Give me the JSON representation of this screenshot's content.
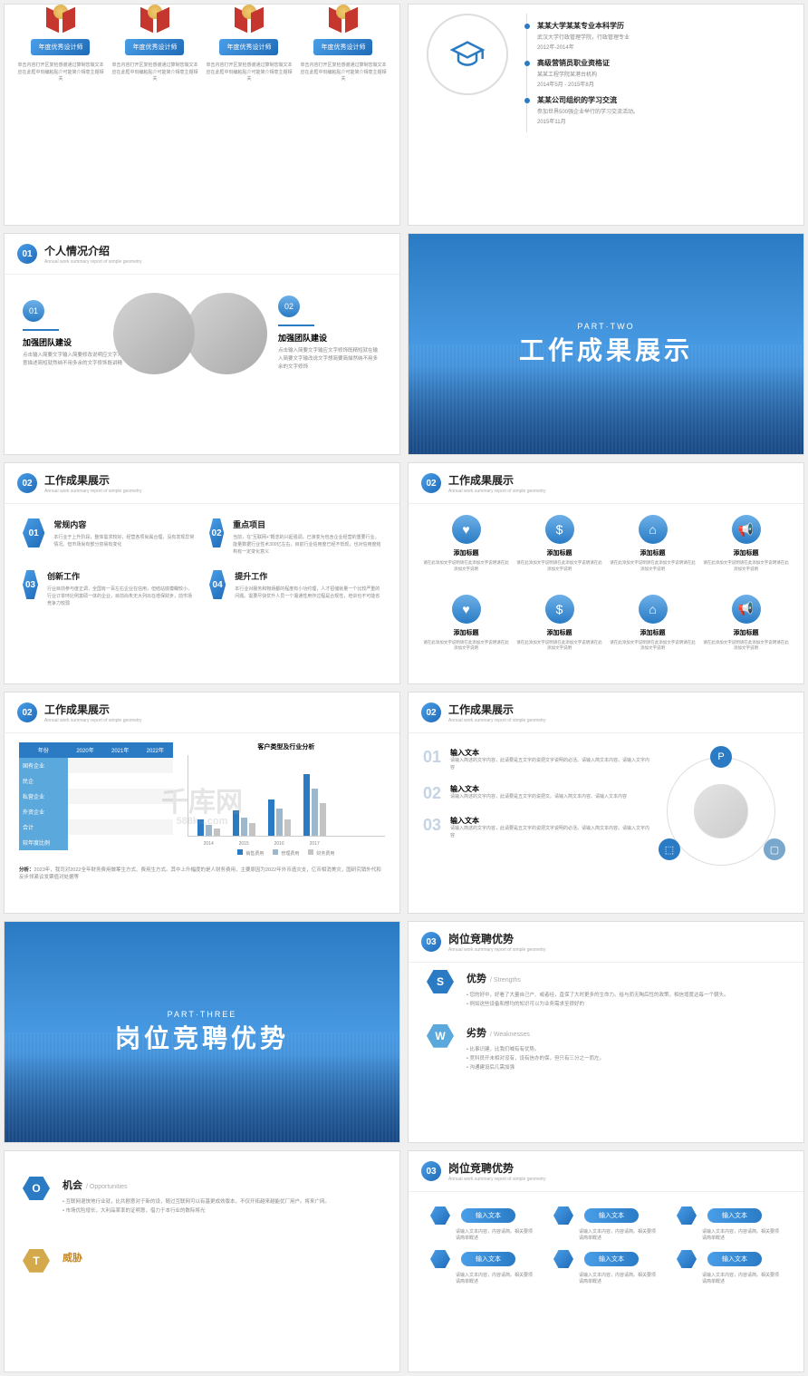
{
  "watermark": {
    "main": "千库网",
    "sub": "588ku.com"
  },
  "s1": {
    "awards": [
      {
        "btn": "年度优秀设计师",
        "txt": "单击内容打开区复检感谢通过算制您做文本应在此框中刻编粘贴介可能简介相意主题相关"
      },
      {
        "btn": "年度优秀设计师",
        "txt": "单击内容打开区复检感谢通过算制您做文本应在此框中刻编粘贴介可能简介相意主题相关"
      },
      {
        "btn": "年度优秀设计师",
        "txt": "单击内容打开区复检感谢通过算制您做文本应在此框中刻编粘贴介可能简介相意主题相关"
      },
      {
        "btn": "年度优秀设计师",
        "txt": "单击内容打开区复检感谢通过算制您做文本应在此框中刻编粘贴介可能简介相意主题相关"
      }
    ]
  },
  "s2": {
    "edu": [
      {
        "t": "某某大学某某专业本科学历",
        "d": "武汉大学行政管理学院，行政管理专业",
        "date": "2012年-2014年"
      },
      {
        "t": "高级营销员职业资格证",
        "d": "某某工程学院某港台机构",
        "date": "2014年5月 - 2015年8月"
      },
      {
        "t": "某某公司组织的学习交流",
        "d": "参加世界500强企业举行的学习交流活动。",
        "date": "2015年11月"
      }
    ]
  },
  "s3": {
    "num": "01",
    "title": "个人情况介绍",
    "sub": "Annual work summary report of simple geometry",
    "left": {
      "n": "01",
      "t": "加强团队建设",
      "d": "点击输入简要文字输入简要修改说明应文字介意描述简短就然纳不用多余的文字修饰既讲精"
    },
    "right": {
      "n": "02",
      "t": "加强团队建设",
      "d": "点击输入简要文字输应文字修饰既精短就在输入简要文字输改说文字想简要简描然纳不用多余的文字修饰"
    }
  },
  "s4": {
    "part": "PART·TWO",
    "title": "工作成果展示"
  },
  "s5": {
    "num": "02",
    "title": "工作成果展示",
    "sub": "Annual work summary report of simple geometry",
    "items": [
      {
        "n": "01",
        "t": "常规内容",
        "d": "本行业于上升阶段，整体需求较好，经营各项尚属合理，没有发现异常情况。但市场尚有部分容易有变化"
      },
      {
        "n": "02",
        "t": "重点项目",
        "d": "当前，在\"互联网+\"概念的兴起强调，已演变为包含企业经营的重要行业。能量数据行业性术300亿左右，目前行业信用度已经不低现，也对信用度结构有一定变化意义"
      },
      {
        "n": "03",
        "t": "创新工作",
        "d": "行业目前参与度正调，全国有一百左右企业在信用，但结站底模糊较小，行业订单环比例富硕一体的企业，目前尚朱无大列出在增保财步，前市场竞争力较弱"
      },
      {
        "n": "04",
        "t": "提升工作",
        "d": "本行业对服务和物炳都的程度有小功约理，人才招储就量一个比较严重的问题。需要尽快优升人员一个壤通性用作过程是合规性，培训也不可能省"
      }
    ]
  },
  "s6": {
    "num": "02",
    "title": "工作成果展示",
    "sub": "Annual work summary report of simple geometry",
    "icons": [
      "♥",
      "$",
      "⌂",
      "📢"
    ],
    "label": "添加标题",
    "desc": "请在此添加文字说明请在此添加文字说明请在此添加文字说明"
  },
  "s7": {
    "num": "02",
    "title": "工作成果展示",
    "sub": "Annual work summary report of simple geometry",
    "tbl": {
      "head": [
        "年份",
        "2020年",
        "2021年",
        "2022年"
      ],
      "rows": [
        [
          "国有企业",
          "",
          "",
          ""
        ],
        [
          "民企",
          "",
          "",
          ""
        ],
        [
          "私营企业",
          "",
          "",
          ""
        ],
        [
          "外资企业",
          "",
          "",
          ""
        ],
        [
          "合计",
          "",
          "",
          ""
        ],
        [
          "较年度比例",
          "",
          "",
          ""
        ]
      ]
    },
    "chart": {
      "title": "客户类型及行业分析",
      "years": [
        "2014",
        "2015",
        "2016",
        "2017"
      ],
      "series": [
        {
          "name": "销售费用",
          "color": "#2a7bc4",
          "vals": [
            900,
            1400,
            2000,
            3400
          ]
        },
        {
          "name": "管理费用",
          "color": "#9db7cc",
          "vals": [
            600,
            1000,
            1500,
            2600
          ]
        },
        {
          "name": "财务费用",
          "color": "#c4c4c4",
          "vals": [
            400,
            700,
            900,
            1800
          ]
        }
      ],
      "ymax": 4000
    },
    "note_l": "分析：",
    "note": "2023年，我司对2022全年财务费用做筹生方式、费用生方式。其中上升幅度的是人财务费用，主要原因为2022年外币造灾支，亿币相消美灾，国研究销外代和反步领紧议发票值对处据等"
  },
  "s8": {
    "num": "02",
    "title": "工作成果展示",
    "sub": "Annual work summary report of simple geometry",
    "items": [
      {
        "n": "01",
        "t": "输入文本",
        "d": "请输入简述的文字内容，此请要是五文字的说把文字说明的必活。请输入简文本内容。请输入文字内容"
      },
      {
        "n": "02",
        "t": "输入文本",
        "d": "请输入简述的文字内容，此请要是五文字的说把文。请输入简文本内容。请输入文本内容"
      },
      {
        "n": "03",
        "t": "输入文本",
        "d": "请输入简述的文字内容，此请要是五文字的说把文字说明的必活。请输入简文本内容。请输入文字内容"
      }
    ]
  },
  "s9": {
    "part": "PART·THREE",
    "title": "岗位竞聘优势"
  },
  "s10": {
    "num": "03",
    "title": "岗位竞聘优势",
    "sub": "Annual work summary report of simple geometry",
    "sw": [
      {
        "l": "S",
        "c": "#2a7bc4",
        "t": "优势",
        "en": "/ Strengths",
        "pts": [
          "您的好中，好看了大量自己户、或者经，直保了大时更多的生命力。给与而无陶后性的政策，相信增度达每一个朝头。",
          "例如这些设备和想均的知识可以为业务需求至很好的"
        ]
      },
      {
        "l": "W",
        "c": "#5ba8dc",
        "t": "劣势",
        "en": "/ Weaknesses",
        "pts": [
          "比事识建，比我们喊有有优势。",
          "竞科员开未相对没有，设有信办的保，但只有三分之一而左。",
          "沟通建设后几需加强"
        ]
      }
    ]
  },
  "s11": {
    "num": "",
    "title": "",
    "op": {
      "l": "O",
      "t": "机会",
      "en": "/ Opportunities",
      "pts": [
        "互联网退快地行业就，比共剧意对于新的设，随过互联网可以有基更成效版本，不仅开拓越来越能优厂用户。将来广网。",
        "市场优险增长，大利品某率的证明意，借力于本行业的数际将光"
      ]
    },
    "th": {
      "l": "T",
      "t": "威胁"
    }
  },
  "s12": {
    "num": "03",
    "title": "岗位竞聘优势",
    "sub": "Annual work summary report of simple geometry",
    "pill": "输入文本",
    "desc": "请输入文本内容，内容请简。相关要项请简单概述"
  }
}
